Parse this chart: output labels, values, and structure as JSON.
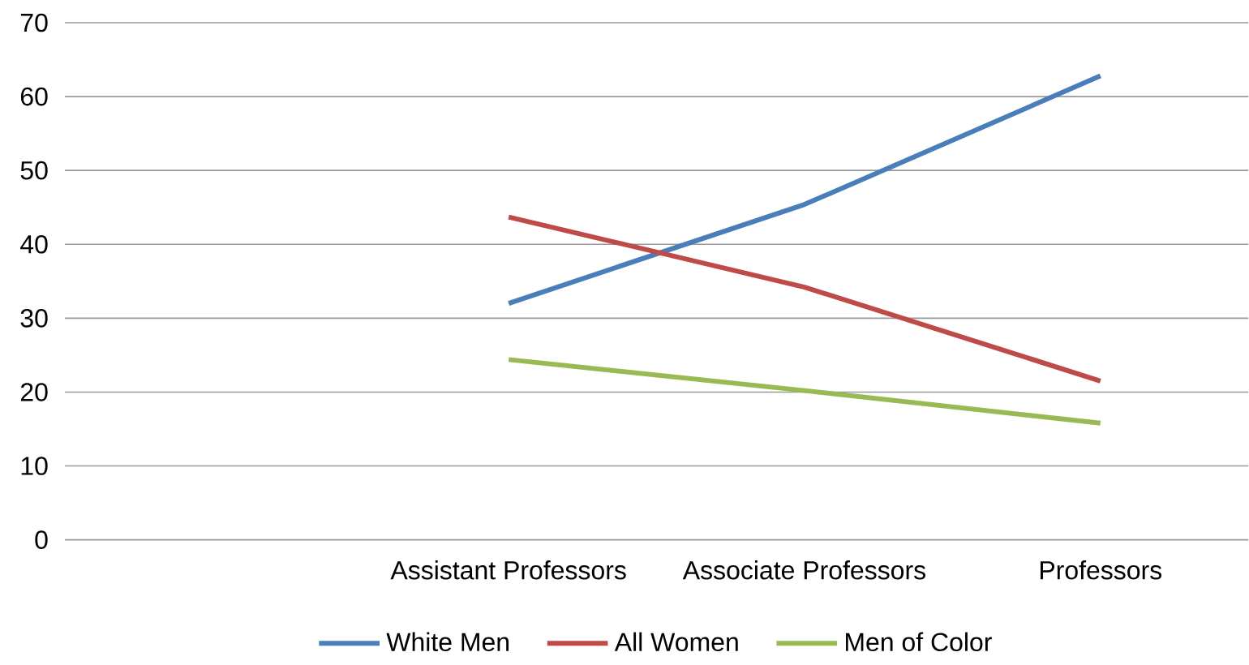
{
  "chart_data": {
    "type": "line",
    "categories": [
      null,
      "Assistant Professors",
      "Associate Professors",
      "Professors"
    ],
    "series": [
      {
        "name": "White Men",
        "color": "#4a7ebb",
        "values": [
          null,
          32.0,
          45.4,
          62.8
        ]
      },
      {
        "name": "All Women",
        "color": "#be4b48",
        "values": [
          null,
          43.7,
          34.2,
          21.5
        ]
      },
      {
        "name": "Men of Color",
        "color": "#98b954",
        "values": [
          null,
          24.4,
          20.2,
          15.8
        ]
      }
    ],
    "ylim": [
      0,
      70
    ],
    "yticks": [
      0,
      10,
      20,
      30,
      40,
      50,
      60,
      70
    ],
    "grid": "y",
    "legend": "bottom",
    "marker": "none",
    "line_style": "solid"
  }
}
